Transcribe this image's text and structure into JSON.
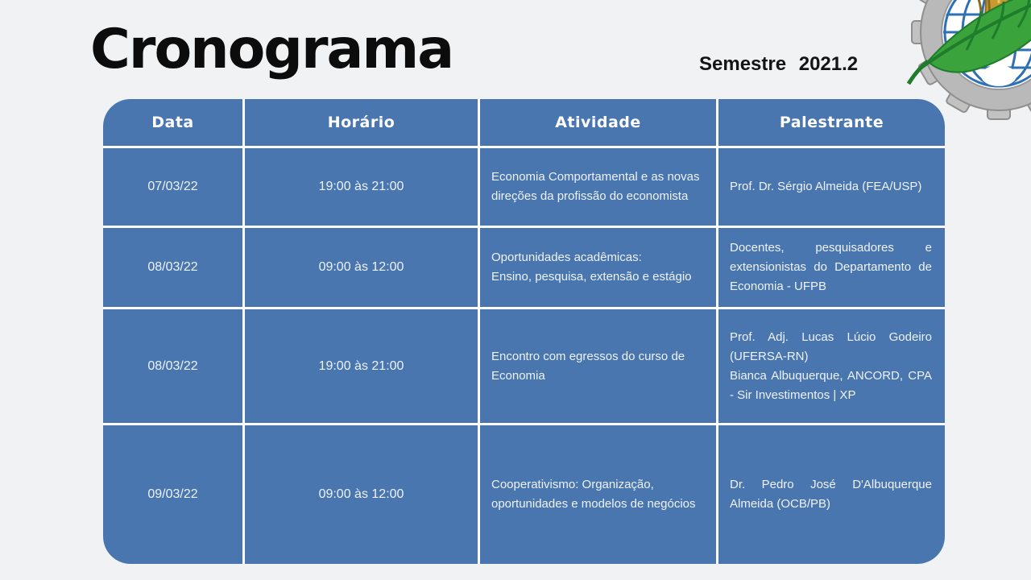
{
  "slide": {
    "title": "Cronograma",
    "subtitle": "Semestre 2021.2"
  },
  "logo": {
    "name": "economics-emblem",
    "elements": [
      "gear",
      "globe-grid",
      "cornucopia",
      "leaf",
      "corn-cluster"
    ],
    "colors": {
      "gear": "#b9b9b9",
      "globe_lines": "#2f6fb4",
      "leaf": "#3aa33b",
      "leaf_vein": "#1e7c2c",
      "cornucopia": "#c9992f",
      "corn": "#f3d503"
    }
  },
  "colors": {
    "background": "#f1f2f3",
    "table_blue": "#4a76b0",
    "divider": "#ffffff",
    "header_text": "#ffffff",
    "body_text": "#eef2f8",
    "title_text": "#0c0c0c"
  },
  "table": {
    "headers": [
      "Data",
      "Horário",
      "Atividade",
      "Palestrante"
    ],
    "rows": [
      {
        "data": "07/03/22",
        "horario": "19:00 às 21:00",
        "atividade": "Economia Comportamental e as novas direções da profissão do economista",
        "palestrante": "Prof. Dr. Sérgio Almeida (FEA/USP)"
      },
      {
        "data": "08/03/22",
        "horario": "09:00 às 12:00",
        "atividade": "Oportunidades acadêmicas:\nEnsino, pesquisa, extensão e estágio",
        "palestrante": "Docentes, pesquisadores e extensionistas do Departamento de Economia - UFPB"
      },
      {
        "data": "08/03/22",
        "horario": "19:00 às 21:00",
        "atividade": "Encontro com egressos do curso de Economia",
        "palestrante": "Prof. Adj. Lucas Lúcio Godeiro (UFERSA-RN)\nBianca Albuquerque, ANCORD, CPA - Sir Investimentos | XP"
      },
      {
        "data": "09/03/22",
        "horario": "09:00 às 12:00",
        "atividade": "Cooperativismo: Organização, oportunidades e modelos de negócios",
        "palestrante": "Dr. Pedro José D'Albuquerque Almeida (OCB/PB)"
      }
    ]
  }
}
